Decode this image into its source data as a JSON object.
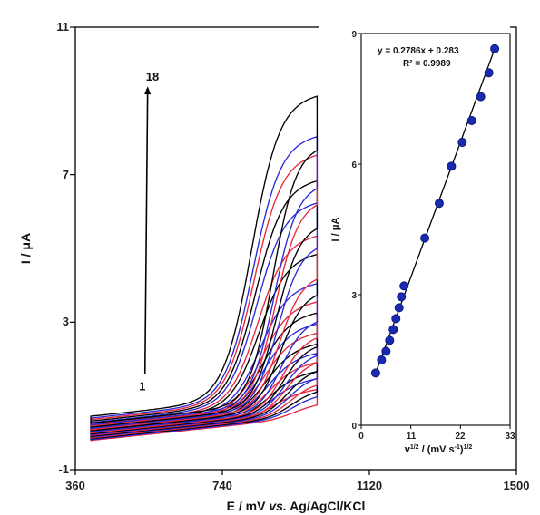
{
  "chart_data": [
    {
      "type": "line",
      "title": "",
      "xlabel": "E / mV vs. Ag/AgCl/KCl",
      "xlabel_parts": [
        "E / mV ",
        "vs.",
        " Ag/AgCl/KCl"
      ],
      "ylabel": "I / μA",
      "xlim": [
        360,
        1500
      ],
      "ylim": [
        -1,
        11
      ],
      "x_ticks": [
        "360",
        "740",
        "1120",
        "1500"
      ],
      "y_ticks": [
        "-1",
        "3",
        "7",
        "11"
      ],
      "grid": false,
      "series_colors": [
        "#e8283c",
        "#2a2ad8",
        "#000000"
      ],
      "curve_count": 18,
      "x_start": 400,
      "x_end": 985,
      "peak_currents": [
        1.2,
        1.5,
        1.7,
        1.95,
        2.2,
        2.45,
        2.75,
        3.0,
        3.3,
        3.6,
        4.1,
        4.9,
        5.4,
        6.3,
        6.9,
        7.6,
        8.1,
        9.2
      ],
      "base_currents": [
        -0.15,
        -0.12,
        -0.09,
        -0.06,
        -0.03,
        0.0,
        0.03,
        0.06,
        0.09,
        0.12,
        0.16,
        0.2,
        0.24,
        0.28,
        0.32,
        0.36,
        0.4,
        0.45
      ],
      "annotations": {
        "arrow_from": {
          "x": 540,
          "y": 1.6
        },
        "arrow_to": {
          "x": 547,
          "y": 9.4
        },
        "start_label": "1",
        "end_label": "18"
      }
    },
    {
      "type": "scatter",
      "title": "",
      "xlabel": "v1/2 / (mV s-1)1/2",
      "xlabel_parts": [
        "v",
        "1/2",
        " / (mV s",
        "-1",
        ")",
        "1/2"
      ],
      "ylabel": "I / μA",
      "xlim": [
        0,
        33
      ],
      "ylim": [
        0,
        9
      ],
      "x_ticks": [
        "0",
        "11",
        "22",
        "33"
      ],
      "y_ticks": [
        "0",
        "3",
        "6",
        "9"
      ],
      "grid": false,
      "marker_color": "#1a2ab0",
      "points": [
        {
          "x": 3.2,
          "y": 1.2
        },
        {
          "x": 4.5,
          "y": 1.5
        },
        {
          "x": 5.5,
          "y": 1.7
        },
        {
          "x": 6.3,
          "y": 1.95
        },
        {
          "x": 7.1,
          "y": 2.2
        },
        {
          "x": 7.7,
          "y": 2.45
        },
        {
          "x": 8.4,
          "y": 2.7
        },
        {
          "x": 8.9,
          "y": 2.95
        },
        {
          "x": 9.5,
          "y": 3.2
        },
        {
          "x": 14.1,
          "y": 4.3
        },
        {
          "x": 17.3,
          "y": 5.1
        },
        {
          "x": 20.0,
          "y": 5.95
        },
        {
          "x": 22.4,
          "y": 6.5
        },
        {
          "x": 24.5,
          "y": 7.0
        },
        {
          "x": 26.5,
          "y": 7.55
        },
        {
          "x": 28.3,
          "y": 8.1
        },
        {
          "x": 29.6,
          "y": 8.65
        }
      ],
      "fit_line": {
        "x": [
          3.2,
          29.6
        ],
        "y": [
          1.2,
          8.65
        ]
      },
      "equation_label": "y = 0.2786x + 0.283",
      "r2_label": "R² = 0.9989"
    }
  ]
}
